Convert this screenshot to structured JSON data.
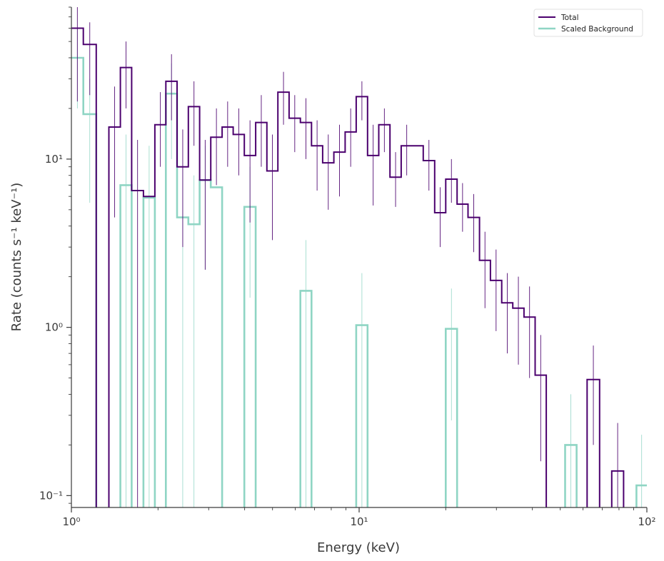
{
  "chart_data": {
    "type": "line",
    "xscale": "log",
    "yscale": "log",
    "xlim": [
      1,
      100
    ],
    "ylim": [
      0.085,
      80
    ],
    "xlabel": "Energy (keV)",
    "ylabel": "Rate (counts s⁻¹ keV⁻¹)",
    "xticks": [
      {
        "value": 1,
        "label": "10⁰"
      },
      {
        "value": 10,
        "label": "10¹"
      },
      {
        "value": 100,
        "label": "10²"
      }
    ],
    "yticks": [
      {
        "value": 0.1,
        "label": "10⁻¹"
      },
      {
        "value": 1,
        "label": "10⁰"
      },
      {
        "value": 10,
        "label": "10¹"
      }
    ],
    "grid": false,
    "legend": "top-right",
    "series": [
      {
        "name": "Total",
        "color": "#4b006e",
        "steps": [
          {
            "x0": 1.0,
            "x1": 1.1,
            "y": 60,
            "lo": 22,
            "hi": 80
          },
          {
            "x0": 1.1,
            "x1": 1.22,
            "y": 48,
            "lo": 24,
            "hi": 65
          },
          {
            "x0": 1.22,
            "x1": 1.35,
            "y": 0.05
          },
          {
            "x0": 1.35,
            "x1": 1.48,
            "y": 15.5,
            "lo": 4.5,
            "hi": 27
          },
          {
            "x0": 1.48,
            "x1": 1.62,
            "y": 35,
            "lo": 20,
            "hi": 50
          },
          {
            "x0": 1.62,
            "x1": 1.78,
            "y": 6.5,
            "lo": 0.06,
            "hi": 13
          },
          {
            "x0": 1.78,
            "x1": 1.95,
            "y": 6.0
          },
          {
            "x0": 1.95,
            "x1": 2.13,
            "y": 16,
            "lo": 9,
            "hi": 25
          },
          {
            "x0": 2.13,
            "x1": 2.33,
            "y": 29,
            "lo": 17,
            "hi": 42
          },
          {
            "x0": 2.33,
            "x1": 2.55,
            "y": 9,
            "lo": 3,
            "hi": 15
          },
          {
            "x0": 2.55,
            "x1": 2.79,
            "y": 20.5,
            "lo": 12,
            "hi": 29
          },
          {
            "x0": 2.79,
            "x1": 3.05,
            "y": 7.5,
            "lo": 2.2,
            "hi": 13
          },
          {
            "x0": 3.05,
            "x1": 3.34,
            "y": 13.5,
            "lo": 7,
            "hi": 20
          },
          {
            "x0": 3.34,
            "x1": 3.65,
            "y": 15.5,
            "lo": 9,
            "hi": 22
          },
          {
            "x0": 3.65,
            "x1": 3.99,
            "y": 14,
            "lo": 8,
            "hi": 20
          },
          {
            "x0": 3.99,
            "x1": 4.37,
            "y": 10.5,
            "lo": 4.2,
            "hi": 17
          },
          {
            "x0": 4.37,
            "x1": 4.78,
            "y": 16.5,
            "lo": 9,
            "hi": 24
          },
          {
            "x0": 4.78,
            "x1": 5.22,
            "y": 8.5,
            "lo": 3.3,
            "hi": 14
          },
          {
            "x0": 5.22,
            "x1": 5.71,
            "y": 25,
            "lo": 16,
            "hi": 33
          },
          {
            "x0": 5.71,
            "x1": 6.25,
            "y": 17.5,
            "lo": 11,
            "hi": 24
          },
          {
            "x0": 6.25,
            "x1": 6.83,
            "y": 16.5,
            "lo": 10,
            "hi": 23
          },
          {
            "x0": 6.83,
            "x1": 7.47,
            "y": 12,
            "lo": 6.5,
            "hi": 17
          },
          {
            "x0": 7.47,
            "x1": 8.17,
            "y": 9.5,
            "lo": 5,
            "hi": 14
          },
          {
            "x0": 8.17,
            "x1": 8.94,
            "y": 11,
            "lo": 6,
            "hi": 16
          },
          {
            "x0": 8.94,
            "x1": 9.77,
            "y": 14.5,
            "lo": 9,
            "hi": 20
          },
          {
            "x0": 9.77,
            "x1": 10.7,
            "y": 23.5,
            "lo": 17,
            "hi": 29
          },
          {
            "x0": 10.7,
            "x1": 11.7,
            "y": 10.5,
            "lo": 5.3,
            "hi": 16
          },
          {
            "x0": 11.7,
            "x1": 12.8,
            "y": 16,
            "lo": 11,
            "hi": 20
          },
          {
            "x0": 12.8,
            "x1": 14.0,
            "y": 7.8,
            "lo": 5.2,
            "hi": 11
          },
          {
            "x0": 14.0,
            "x1": 15.3,
            "y": 12,
            "lo": 8,
            "hi": 16
          },
          {
            "x0": 15.3,
            "x1": 16.7,
            "y": 12
          },
          {
            "x0": 16.7,
            "x1": 18.3,
            "y": 9.8,
            "lo": 6.5,
            "hi": 13
          },
          {
            "x0": 18.3,
            "x1": 20.0,
            "y": 4.8,
            "lo": 3,
            "hi": 6.8
          },
          {
            "x0": 20.0,
            "x1": 21.9,
            "y": 7.6,
            "lo": 5.5,
            "hi": 10
          },
          {
            "x0": 21.9,
            "x1": 23.9,
            "y": 5.4,
            "lo": 3.7,
            "hi": 7.2
          },
          {
            "x0": 23.9,
            "x1": 26.2,
            "y": 4.5,
            "lo": 2.8,
            "hi": 6.2
          },
          {
            "x0": 26.2,
            "x1": 28.6,
            "y": 2.5,
            "lo": 1.3,
            "hi": 3.7
          },
          {
            "x0": 28.6,
            "x1": 31.3,
            "y": 1.9,
            "lo": 0.95,
            "hi": 2.9
          },
          {
            "x0": 31.3,
            "x1": 34.2,
            "y": 1.4,
            "lo": 0.7,
            "hi": 2.1
          },
          {
            "x0": 34.2,
            "x1": 37.4,
            "y": 1.3,
            "lo": 0.6,
            "hi": 2
          },
          {
            "x0": 37.4,
            "x1": 40.9,
            "y": 1.15,
            "lo": 0.5,
            "hi": 1.75
          },
          {
            "x0": 40.9,
            "x1": 44.7,
            "y": 0.52,
            "lo": 0.16,
            "hi": 0.9
          },
          {
            "x0": 44.7,
            "x1": 62.0,
            "y": 0.05
          },
          {
            "x0": 62.0,
            "x1": 68.5,
            "y": 0.49,
            "lo": 0.2,
            "hi": 0.78
          },
          {
            "x0": 68.5,
            "x1": 75.5,
            "y": 0.05
          },
          {
            "x0": 75.5,
            "x1": 83.0,
            "y": 0.14,
            "lo": 0.05,
            "hi": 0.27
          },
          {
            "x0": 83.0,
            "x1": 100,
            "y": 0.05
          }
        ]
      },
      {
        "name": "Scaled  Background",
        "color": "#8fd5c4",
        "steps": [
          {
            "x0": 1.0,
            "x1": 1.1,
            "y": 40,
            "lo": 20,
            "hi": 60
          },
          {
            "x0": 1.1,
            "x1": 1.22,
            "y": 18.5,
            "lo": 5.5,
            "hi": 30
          },
          {
            "x0": 1.22,
            "x1": 1.48,
            "y": 0.05
          },
          {
            "x0": 1.48,
            "x1": 1.62,
            "y": 7,
            "lo": 0.06,
            "hi": 14
          },
          {
            "x0": 1.62,
            "x1": 1.78,
            "y": 0.05
          },
          {
            "x0": 1.78,
            "x1": 1.95,
            "y": 5.9,
            "lo": 0.06,
            "hi": 12
          },
          {
            "x0": 1.95,
            "x1": 2.13,
            "y": 0.05
          },
          {
            "x0": 2.13,
            "x1": 2.33,
            "y": 24.5,
            "lo": 10,
            "hi": 37
          },
          {
            "x0": 2.33,
            "x1": 2.55,
            "y": 4.5,
            "lo": 0.06,
            "hi": 9
          },
          {
            "x0": 2.55,
            "x1": 2.79,
            "y": 4.1,
            "lo": 0.06,
            "hi": 8
          },
          {
            "x0": 2.79,
            "x1": 3.05,
            "y": 7.5,
            "lo": 2.2,
            "hi": 12
          },
          {
            "x0": 3.05,
            "x1": 3.34,
            "y": 6.8
          },
          {
            "x0": 3.34,
            "x1": 3.99,
            "y": 0.05
          },
          {
            "x0": 3.99,
            "x1": 4.37,
            "y": 5.2,
            "lo": 1.5,
            "hi": 9
          },
          {
            "x0": 4.37,
            "x1": 6.25,
            "y": 0.05
          },
          {
            "x0": 6.25,
            "x1": 6.83,
            "y": 1.65,
            "lo": 0.06,
            "hi": 3.3
          },
          {
            "x0": 6.83,
            "x1": 9.77,
            "y": 0.05
          },
          {
            "x0": 9.77,
            "x1": 10.7,
            "y": 1.03,
            "lo": 0.06,
            "hi": 2.1
          },
          {
            "x0": 10.7,
            "x1": 20.0,
            "y": 0.05
          },
          {
            "x0": 20.0,
            "x1": 21.9,
            "y": 0.98,
            "lo": 0.28,
            "hi": 1.7
          },
          {
            "x0": 21.9,
            "x1": 52.0,
            "y": 0.05
          },
          {
            "x0": 52.0,
            "x1": 57.0,
            "y": 0.2,
            "lo": 0.06,
            "hi": 0.4
          },
          {
            "x0": 57.0,
            "x1": 92.0,
            "y": 0.05
          },
          {
            "x0": 92.0,
            "x1": 100,
            "y": 0.115,
            "lo": 0.06,
            "hi": 0.23
          }
        ]
      }
    ]
  }
}
